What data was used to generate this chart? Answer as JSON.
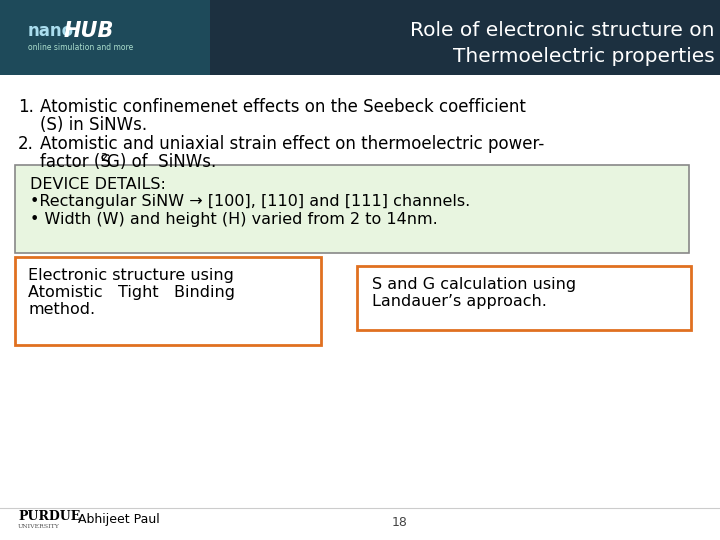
{
  "title_line1": "Role of electronic structure on",
  "title_line2": "Thermoelectric properties",
  "title_color": "#ffffff",
  "bg_color": "#ffffff",
  "item1_line1": "Atomistic confinemenet effects on the Seebeck coefficient",
  "item1_line2": "(S) in SiNWs.",
  "item2_line1": "Atomistic and uniaxial strain effect on thermoelectric power-",
  "item2_line2": "factor (S",
  "item2_sup": "2",
  "item2_line3": "G) of  SiNWs.",
  "device_title": "DEVICE DETAILS:",
  "device_bullet1": "•Rectangular SiNW → [100], [110] and [111] channels.",
  "device_bullet2": "• Width (W) and height (H) varied from 2 to 14nm.",
  "device_box_bg": "#e8f5e0",
  "device_box_edge": "#888888",
  "box1_text1": "Electronic structure using",
  "box1_text2": "Atomistic   Tight   Binding",
  "box1_text3": "method.",
  "box2_text1": "S and G calculation using",
  "box2_text2": "Landauer’s approach.",
  "orange_box_color": "#e07020",
  "footer_text": "Abhijeet Paul",
  "page_number": "18",
  "text_color": "#000000",
  "font_size_title": 14.5,
  "font_size_body": 12,
  "font_size_device": 11.5
}
